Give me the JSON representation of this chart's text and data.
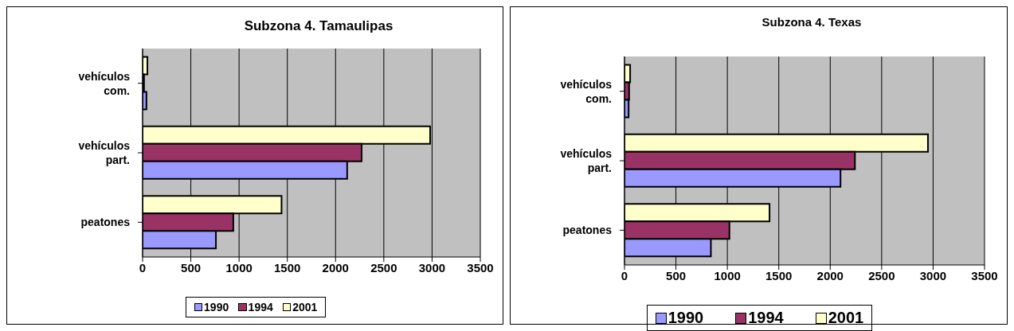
{
  "chart_data": [
    {
      "type": "bar",
      "orientation": "horizontal",
      "title": "Subzona 4. Tamaulipas",
      "categories": [
        "vehículos com.",
        "vehículos part.",
        "peatones"
      ],
      "series": [
        {
          "name": "1990",
          "color": "#9999ff",
          "values": [
            40,
            2120,
            760
          ]
        },
        {
          "name": "1994",
          "color": "#993366",
          "values": [
            15,
            2270,
            940
          ]
        },
        {
          "name": "2001",
          "color": "#ffffcc",
          "values": [
            50,
            2980,
            1440
          ]
        }
      ],
      "xlim": [
        0,
        3500
      ],
      "xticks": [
        0,
        500,
        1000,
        1500,
        2000,
        2500,
        3000,
        3500
      ],
      "grid": "x",
      "legend": "bottom"
    },
    {
      "type": "bar",
      "orientation": "horizontal",
      "title": "Subzona 4. Texas",
      "categories": [
        "vehículos com.",
        "vehículos part.",
        "peatones"
      ],
      "series": [
        {
          "name": "1990",
          "color": "#9999ff",
          "values": [
            40,
            2100,
            840
          ]
        },
        {
          "name": "1994",
          "color": "#993366",
          "values": [
            45,
            2240,
            1020
          ]
        },
        {
          "name": "2001",
          "color": "#ffffcc",
          "values": [
            55,
            2950,
            1410
          ]
        }
      ],
      "xlim": [
        0,
        3500
      ],
      "xticks": [
        0,
        500,
        1000,
        1500,
        2000,
        2500,
        3000,
        3500
      ],
      "grid": "x",
      "legend": "bottom"
    }
  ]
}
